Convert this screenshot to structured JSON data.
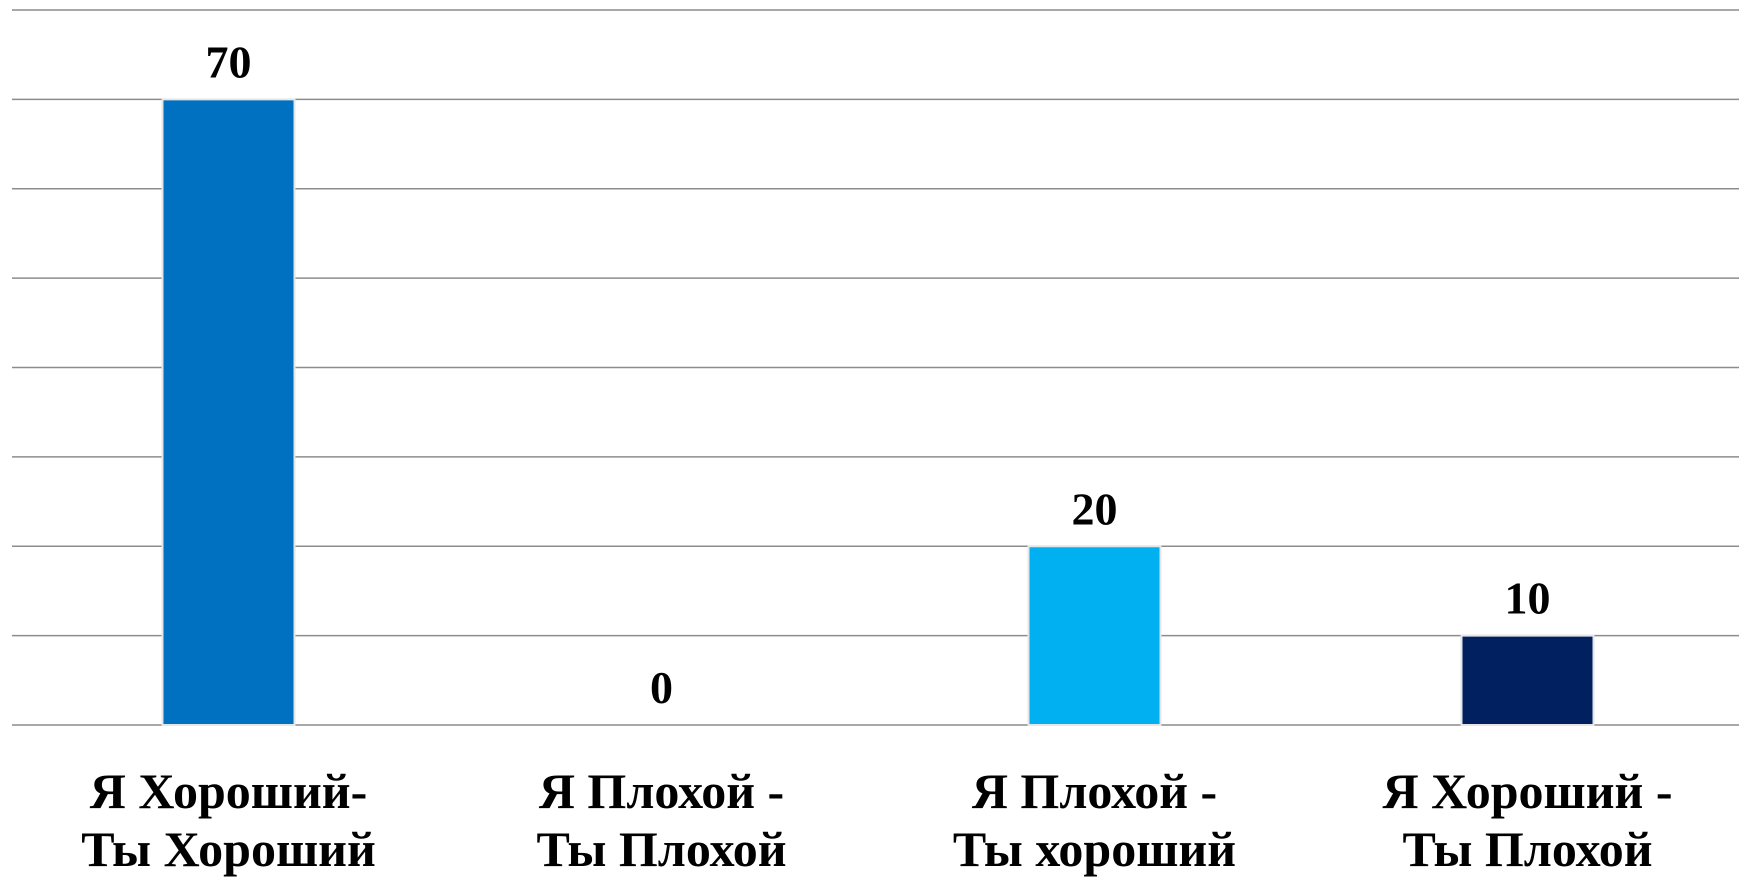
{
  "chart_data": {
    "type": "bar",
    "categories": [
      [
        "Я Хороший-",
        "Ты Хороший"
      ],
      [
        "Я Плохой -",
        "Ты Плохой"
      ],
      [
        "Я Плохой -",
        "Ты хороший"
      ],
      [
        "Я Хороший -",
        "Ты Плохой"
      ]
    ],
    "values": [
      70,
      0,
      20,
      10
    ],
    "value_labels": [
      "70",
      "0",
      "20",
      "10"
    ],
    "colors": [
      "#0070c0",
      "#ffffff",
      "#00b0f0",
      "#002060"
    ],
    "ylim": [
      0,
      80
    ],
    "grid_step": 10,
    "grid": true,
    "legend": "none",
    "title": "",
    "xlabel": "",
    "ylabel": ""
  }
}
